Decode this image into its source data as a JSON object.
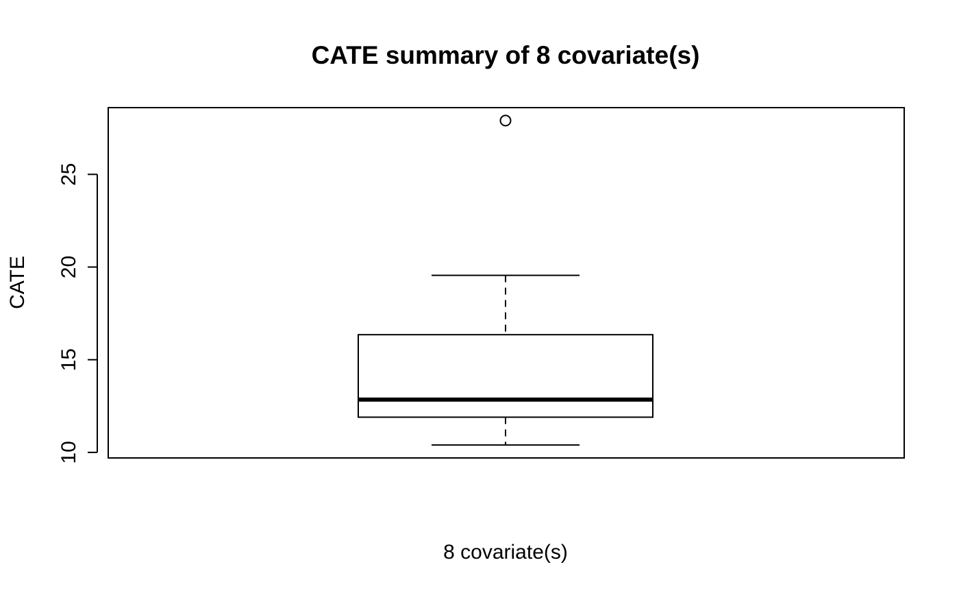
{
  "chart_data": {
    "type": "boxplot",
    "title": "CATE summary of 8 covariate(s)",
    "xlabel": "8 covariate(s)",
    "ylabel": "CATE",
    "ylim": [
      9.7,
      28.6
    ],
    "yticks": [
      10,
      15,
      20,
      25
    ],
    "ytick_labels": [
      "10",
      "15",
      "20",
      "25"
    ],
    "series": [
      {
        "whisker_low": 10.4,
        "q1": 11.9,
        "median": 12.85,
        "q3": 16.35,
        "whisker_high": 19.55,
        "outliers": [
          27.9
        ]
      }
    ],
    "grid": false,
    "legend": "none",
    "colors": {
      "stroke": "#000000",
      "fill": "#ffffff"
    }
  }
}
